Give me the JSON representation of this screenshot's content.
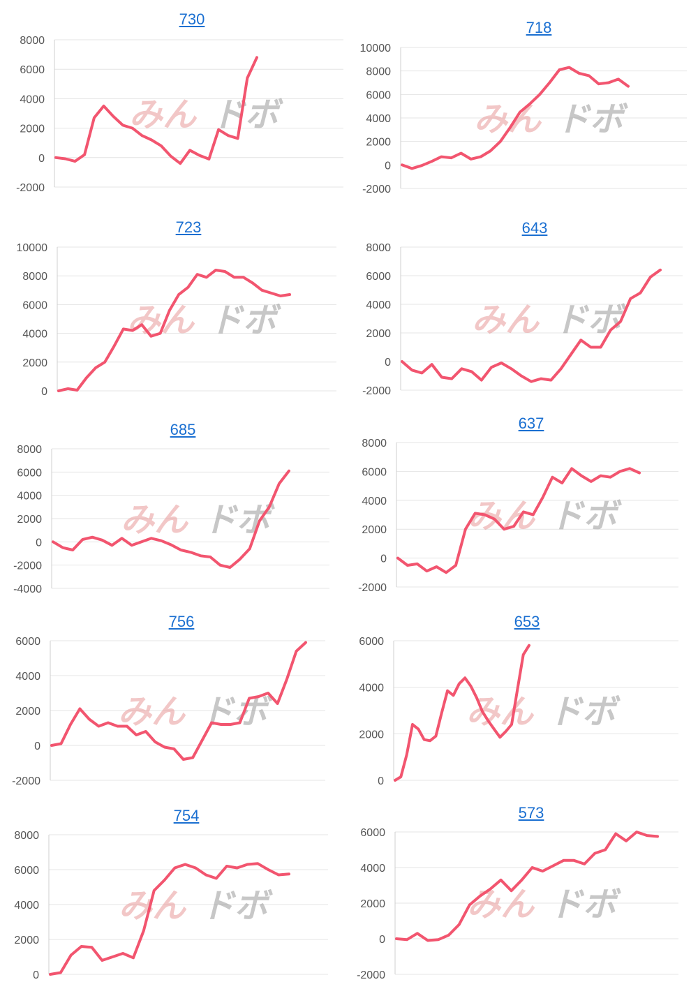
{
  "colors": {
    "line": "#f2556f",
    "grid": "#e4e4e4",
    "axis": "#cfcfcf",
    "link": "#1a6fd1"
  },
  "watermark": {
    "left": "みん",
    "right": "ドボ",
    "name": "minrepo-watermark"
  },
  "chart_data": [
    {
      "type": "line",
      "title": "730",
      "ylim": [
        -2000,
        8000
      ],
      "yticks": [
        8000,
        6000,
        4000,
        2000,
        0,
        -2000
      ],
      "series": [
        {
          "values": [
            0,
            -80,
            -250,
            200,
            2700,
            3500,
            2800,
            2200,
            2000,
            1500,
            1200,
            800,
            100,
            -400,
            500,
            150,
            -100,
            1900,
            1500,
            1300,
            5400,
            6800
          ]
        }
      ]
    },
    {
      "type": "line",
      "title": "718",
      "ylim": [
        -2000,
        10000
      ],
      "yticks": [
        10000,
        8000,
        6000,
        4000,
        2000,
        0,
        -2000
      ],
      "series": [
        {
          "values": [
            0,
            -300,
            -50,
            300,
            700,
            600,
            1000,
            500,
            700,
            1200,
            2000,
            3200,
            4500,
            5200,
            6000,
            7000,
            8100,
            8300,
            7800,
            7600,
            6900,
            7000,
            7300,
            6700
          ]
        }
      ]
    },
    {
      "type": "line",
      "title": "723",
      "ylim": [
        0,
        10000
      ],
      "yticks": [
        10000,
        8000,
        6000,
        4000,
        2000,
        0
      ],
      "series": [
        {
          "values": [
            0,
            150,
            50,
            900,
            1600,
            2000,
            3100,
            4300,
            4200,
            4600,
            3800,
            4000,
            5600,
            6700,
            7200,
            8100,
            7900,
            8400,
            8300,
            7900,
            7900,
            7500,
            7000,
            6800,
            6600,
            6700
          ]
        }
      ]
    },
    {
      "type": "line",
      "title": "643",
      "ylim": [
        -2000,
        8000
      ],
      "yticks": [
        8000,
        6000,
        4000,
        2000,
        0,
        -2000
      ],
      "series": [
        {
          "values": [
            0,
            -600,
            -800,
            -200,
            -1100,
            -1200,
            -500,
            -700,
            -1300,
            -400,
            -100,
            -500,
            -1000,
            -1400,
            -1200,
            -1300,
            -500,
            500,
            1500,
            1000,
            1000,
            2200,
            2800,
            4400,
            4800,
            5900,
            6400
          ]
        }
      ]
    },
    {
      "type": "line",
      "title": "685",
      "ylim": [
        -4000,
        8000
      ],
      "yticks": [
        8000,
        6000,
        4000,
        2000,
        0,
        -2000,
        -4000
      ],
      "series": [
        {
          "values": [
            0,
            -500,
            -700,
            200,
            400,
            150,
            -300,
            300,
            -300,
            0,
            300,
            100,
            -250,
            -700,
            -900,
            -1200,
            -1300,
            -2000,
            -2200,
            -1500,
            -600,
            1800,
            3000,
            5000,
            6100
          ]
        }
      ]
    },
    {
      "type": "line",
      "title": "637",
      "ylim": [
        -2000,
        8000
      ],
      "yticks": [
        8000,
        6000,
        4000,
        2000,
        0,
        -2000
      ],
      "series": [
        {
          "values": [
            0,
            -500,
            -400,
            -900,
            -600,
            -1000,
            -500,
            2000,
            3100,
            3000,
            2700,
            2000,
            2200,
            3200,
            3000,
            4200,
            5600,
            5200,
            6200,
            5700,
            5300,
            5700,
            5600,
            6000,
            6200,
            5900
          ]
        }
      ]
    },
    {
      "type": "line",
      "title": "756",
      "ylim": [
        -2000,
        6000
      ],
      "yticks": [
        6000,
        4000,
        2000,
        0,
        -2000
      ],
      "series": [
        {
          "values": [
            0,
            100,
            1200,
            2100,
            1500,
            1100,
            1300,
            1100,
            1100,
            600,
            800,
            200,
            -100,
            -200,
            -800,
            -700,
            300,
            1300,
            1200,
            1200,
            1300,
            2700,
            2800,
            3000,
            2400,
            3800,
            5400,
            5900
          ]
        }
      ]
    },
    {
      "type": "line",
      "title": "653",
      "ylim": [
        0,
        6000
      ],
      "yticks": [
        6000,
        4000,
        2000,
        0
      ],
      "series": [
        {
          "values": [
            0,
            150,
            1100,
            2400,
            2200,
            1750,
            1700,
            1900,
            2900,
            3850,
            3650,
            4150,
            4400,
            4050,
            3550,
            2950,
            2550,
            2200,
            1850,
            2100,
            2400,
            3900,
            5400,
            5800
          ]
        }
      ]
    },
    {
      "type": "line",
      "title": "754",
      "ylim": [
        0,
        8000
      ],
      "yticks": [
        8000,
        6000,
        4000,
        2000,
        0
      ],
      "series": [
        {
          "values": [
            0,
            100,
            1100,
            1600,
            1550,
            800,
            1000,
            1200,
            950,
            2500,
            4800,
            5400,
            6100,
            6300,
            6100,
            5700,
            5500,
            6200,
            6100,
            6300,
            6350,
            6000,
            5700,
            5750
          ]
        }
      ]
    },
    {
      "type": "line",
      "title": "573",
      "ylim": [
        -2000,
        6000
      ],
      "yticks": [
        6000,
        4000,
        2000,
        0,
        -2000
      ],
      "series": [
        {
          "values": [
            0,
            -50,
            300,
            -100,
            -50,
            200,
            800,
            1900,
            2400,
            2800,
            3300,
            2700,
            3300,
            4000,
            3800,
            4100,
            4400,
            4400,
            4200,
            4800,
            5000,
            5900,
            5500,
            6000,
            5800,
            5750
          ]
        }
      ]
    }
  ]
}
